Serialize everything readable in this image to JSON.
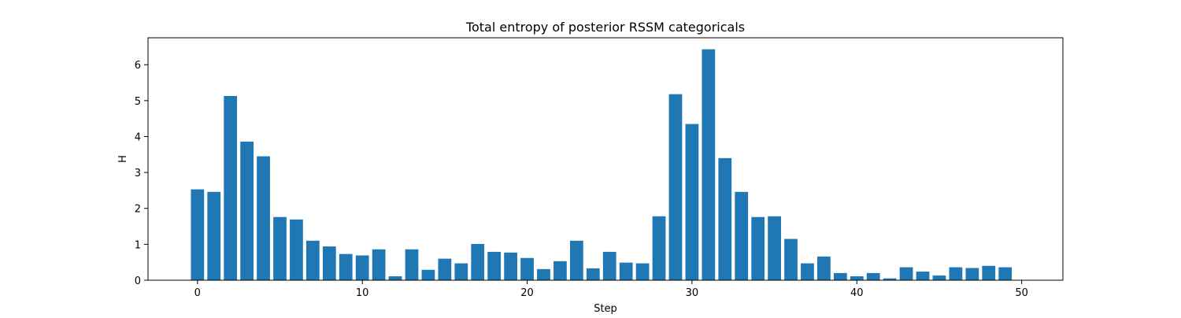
{
  "chart_data": {
    "type": "bar",
    "title": "Total entropy of posterior RSSM categoricals",
    "xlabel": "Step",
    "ylabel": "H",
    "x": [
      0,
      1,
      2,
      3,
      4,
      5,
      6,
      7,
      8,
      9,
      10,
      11,
      12,
      13,
      14,
      15,
      16,
      17,
      18,
      19,
      20,
      21,
      22,
      23,
      24,
      25,
      26,
      27,
      28,
      29,
      30,
      31,
      32,
      33,
      34,
      35,
      36,
      37,
      38,
      39,
      40,
      41,
      42,
      43,
      44,
      45,
      46,
      47,
      48,
      49
    ],
    "values": [
      2.53,
      2.46,
      5.13,
      3.86,
      3.45,
      1.76,
      1.69,
      1.1,
      0.94,
      0.73,
      0.69,
      0.86,
      0.11,
      0.86,
      0.29,
      0.6,
      0.47,
      1.01,
      0.79,
      0.77,
      0.62,
      0.31,
      0.53,
      1.1,
      0.33,
      0.79,
      0.49,
      0.47,
      1.78,
      5.18,
      4.35,
      6.43,
      3.4,
      2.46,
      1.76,
      1.78,
      1.15,
      0.47,
      0.66,
      0.2,
      0.11,
      0.2,
      0.05,
      0.36,
      0.24,
      0.13,
      0.36,
      0.34,
      0.4,
      0.36
    ],
    "xlim": [
      -3,
      52.5
    ],
    "ylim": [
      0,
      6.75
    ],
    "xticks": [
      "0",
      "10",
      "20",
      "30",
      "40",
      "50"
    ],
    "yticks": [
      "0",
      "1",
      "2",
      "3",
      "4",
      "5",
      "6"
    ],
    "grid": false,
    "bar_color": "#1f77b4",
    "axis_color": "#000000"
  }
}
